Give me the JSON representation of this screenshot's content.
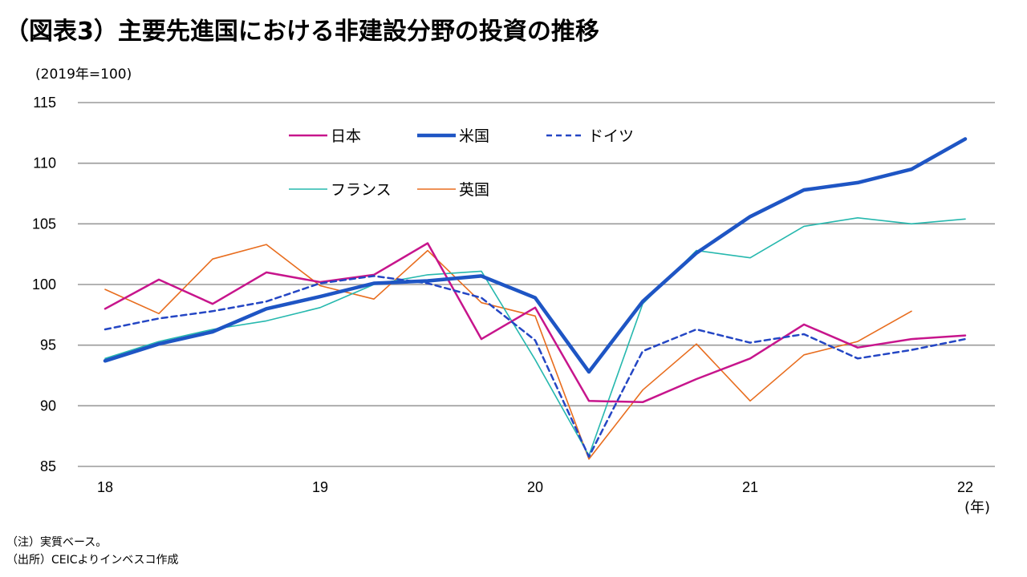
{
  "header": {
    "title": "（図表3）主要先進国における非建設分野の投資の推移",
    "unit_label": "(2019年=100)",
    "x_unit_label": "(年)"
  },
  "notes": {
    "note1": "（注）実質ベース。",
    "note2": "（出所）CEICよりインベスコ作成"
  },
  "chart_data": {
    "type": "line",
    "x": [
      "18Q1",
      "18Q2",
      "18Q3",
      "18Q4",
      "19Q1",
      "19Q2",
      "19Q3",
      "19Q4",
      "20Q1",
      "20Q2",
      "20Q3",
      "20Q4",
      "21Q1",
      "21Q2",
      "21Q3",
      "21Q4",
      "22Q1"
    ],
    "x_tick_labels": [
      "18",
      "19",
      "20",
      "21",
      "22"
    ],
    "ylim": [
      85,
      115
    ],
    "y_ticks": [
      85,
      90,
      95,
      100,
      105,
      110,
      115
    ],
    "grid": true,
    "legend_position": "top-center",
    "series": [
      {
        "name": "日本",
        "color": "#C7158C",
        "style": "solid",
        "width": 2.5,
        "values": [
          98.0,
          100.4,
          98.4,
          101.0,
          100.2,
          100.8,
          103.4,
          95.5,
          98.1,
          90.4,
          90.3,
          92.2,
          93.9,
          96.7,
          94.8,
          95.5,
          95.8
        ]
      },
      {
        "name": "米国",
        "color": "#1E55C4",
        "style": "solid",
        "width": 4.5,
        "values": [
          93.7,
          95.1,
          96.1,
          98.0,
          99.0,
          100.1,
          100.3,
          100.7,
          98.9,
          92.8,
          98.6,
          102.6,
          105.6,
          107.8,
          108.4,
          109.5,
          112.0
        ]
      },
      {
        "name": "ドイツ",
        "color": "#2446C4",
        "style": "dashed",
        "width": 2.5,
        "values": [
          96.3,
          97.2,
          97.8,
          98.6,
          100.1,
          100.7,
          100.1,
          98.9,
          95.4,
          85.8,
          94.5,
          96.3,
          95.2,
          95.9,
          93.9,
          94.6,
          95.5
        ]
      },
      {
        "name": "フランス",
        "color": "#26B8AE",
        "style": "solid",
        "width": 1.6,
        "values": [
          93.9,
          95.3,
          96.3,
          97.0,
          98.1,
          100.0,
          100.8,
          101.1,
          93.8,
          85.9,
          98.4,
          102.8,
          102.2,
          104.8,
          105.5,
          105.0,
          105.4
        ]
      },
      {
        "name": "英国",
        "color": "#E86D1E",
        "style": "solid",
        "width": 1.6,
        "values": [
          99.6,
          97.6,
          102.1,
          103.3,
          99.9,
          98.8,
          102.8,
          98.5,
          97.4,
          85.6,
          91.3,
          95.1,
          90.4,
          94.2,
          95.3,
          97.8,
          null
        ]
      }
    ]
  }
}
